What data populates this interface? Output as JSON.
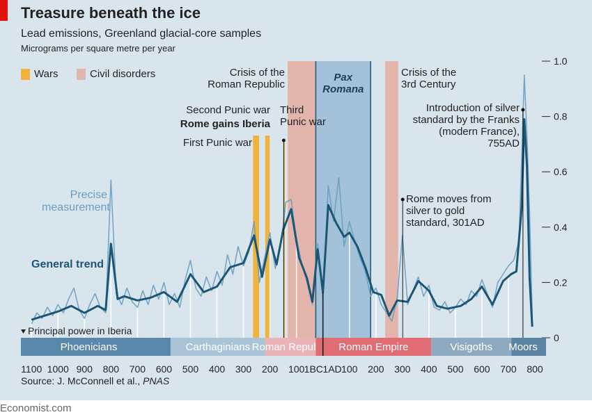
{
  "chart_data": {
    "type": "line",
    "title": "Treasure beneath the ice",
    "subtitle": "Lead emissions, Greenland glacial-core samples",
    "y_label": "Micrograms per square metre per year",
    "source": "Source: J. McConnell et al.,",
    "source_journal": "PNAS",
    "footer": "Economist.com",
    "xlim": [
      -1140,
      800
    ],
    "xticks": [
      {
        "value": -1100,
        "label": "1100"
      },
      {
        "value": -1000,
        "label": "1000"
      },
      {
        "value": -900,
        "label": "900"
      },
      {
        "value": -800,
        "label": "800"
      },
      {
        "value": -700,
        "label": "700"
      },
      {
        "value": -600,
        "label": "600"
      },
      {
        "value": -500,
        "label": "500"
      },
      {
        "value": -400,
        "label": "400"
      },
      {
        "value": -300,
        "label": "300"
      },
      {
        "value": -200,
        "label": "200"
      },
      {
        "value": -100,
        "label": "100"
      },
      {
        "value": -1,
        "label": "1BC"
      },
      {
        "value": 1,
        "label": "1AD"
      },
      100,
      200,
      300,
      400,
      500,
      600,
      700,
      800
    ],
    "ylim": [
      0,
      1
    ],
    "yticks": [
      0,
      0.2,
      0.4,
      0.6,
      0.8,
      {
        "value": 1,
        "label": "1.0"
      }
    ],
    "legend": [
      {
        "name": "Wars",
        "color": "#f0b43c"
      },
      {
        "name": "Civil disorders",
        "color": "#e3b4ab"
      }
    ],
    "wars": [
      [
        -264,
        -241
      ],
      [
        -218,
        -201
      ],
      [
        -149,
        -146
      ]
    ],
    "civil_disorders": [
      [
        -133,
        -27
      ],
      [
        235,
        284
      ]
    ],
    "pax_romana": {
      "label": "Pax\nRomana",
      "start": -27,
      "end": 180,
      "color": "#a3c2da"
    },
    "series": [
      {
        "name": "Precise measurement",
        "color": "#6c9dc0",
        "x": [
          -1100,
          -1080,
          -1060,
          -1040,
          -1020,
          -1000,
          -980,
          -960,
          -940,
          -920,
          -900,
          -880,
          -860,
          -840,
          -820,
          -800,
          -780,
          -760,
          -740,
          -720,
          -700,
          -680,
          -660,
          -640,
          -620,
          -600,
          -580,
          -560,
          -540,
          -520,
          -500,
          -480,
          -460,
          -440,
          -420,
          -400,
          -380,
          -360,
          -340,
          -320,
          -300,
          -280,
          -260,
          -240,
          -220,
          -200,
          -180,
          -160,
          -140,
          -120,
          -100,
          -80,
          -60,
          -40,
          -20,
          0,
          20,
          40,
          60,
          80,
          100,
          120,
          140,
          160,
          180,
          200,
          220,
          240,
          260,
          280,
          300,
          320,
          340,
          360,
          380,
          400,
          420,
          440,
          460,
          480,
          500,
          520,
          540,
          560,
          580,
          600,
          620,
          640,
          660,
          680,
          700,
          720,
          740,
          760,
          770,
          780,
          790
        ],
        "values": [
          0.05,
          0.09,
          0.07,
          0.11,
          0.08,
          0.12,
          0.09,
          0.14,
          0.18,
          0.1,
          0.07,
          0.12,
          0.16,
          0.11,
          0.09,
          0.57,
          0.16,
          0.12,
          0.18,
          0.13,
          0.11,
          0.17,
          0.12,
          0.19,
          0.14,
          0.2,
          0.12,
          0.16,
          0.11,
          0.21,
          0.28,
          0.18,
          0.15,
          0.22,
          0.17,
          0.24,
          0.19,
          0.3,
          0.23,
          0.33,
          0.26,
          0.31,
          0.42,
          0.2,
          0.29,
          0.38,
          0.25,
          0.33,
          0.49,
          0.5,
          0.36,
          0.27,
          0.2,
          0.12,
          0.34,
          0.14,
          0.55,
          0.42,
          0.58,
          0.33,
          0.42,
          0.35,
          0.29,
          0.24,
          0.15,
          0.18,
          0.12,
          0.09,
          0.06,
          0.14,
          0.37,
          0.12,
          0.17,
          0.22,
          0.15,
          0.19,
          0.11,
          0.1,
          0.13,
          0.09,
          0.11,
          0.14,
          0.12,
          0.17,
          0.15,
          0.21,
          0.16,
          0.11,
          0.2,
          0.23,
          0.26,
          0.28,
          0.35,
          0.95,
          0.73,
          0.45,
          0.08
        ]
      },
      {
        "name": "General trend",
        "color": "#1b5674",
        "x": [
          -1100,
          -1050,
          -1000,
          -950,
          -900,
          -850,
          -820,
          -800,
          -775,
          -750,
          -700,
          -650,
          -600,
          -550,
          -500,
          -450,
          -400,
          -350,
          -300,
          -260,
          -230,
          -200,
          -175,
          -150,
          -120,
          -90,
          -60,
          -40,
          -20,
          0,
          20,
          50,
          80,
          100,
          130,
          160,
          190,
          220,
          250,
          280,
          320,
          360,
          400,
          430,
          470,
          520,
          560,
          600,
          640,
          680,
          710,
          730,
          750,
          760,
          770,
          780,
          790
        ],
        "values": [
          0.065,
          0.08,
          0.095,
          0.115,
          0.09,
          0.115,
          0.1,
          0.34,
          0.14,
          0.15,
          0.135,
          0.145,
          0.165,
          0.13,
          0.23,
          0.165,
          0.185,
          0.255,
          0.27,
          0.37,
          0.22,
          0.355,
          0.265,
          0.39,
          0.465,
          0.29,
          0.215,
          0.13,
          0.32,
          0.165,
          0.48,
          0.415,
          0.365,
          0.38,
          0.33,
          0.255,
          0.165,
          0.155,
          0.08,
          0.135,
          0.13,
          0.205,
          0.17,
          0.115,
          0.105,
          0.115,
          0.14,
          0.185,
          0.12,
          0.205,
          0.23,
          0.24,
          0.47,
          0.79,
          0.62,
          0.215,
          0.04
        ]
      }
    ],
    "annotations": [
      {
        "text": "Crisis of the\nRoman Republic"
      },
      {
        "text": "Crisis of the\n3rd Century"
      },
      {
        "text": "Second Punic war"
      },
      {
        "text": "Rome gains Iberia"
      },
      {
        "text": "First Punic war"
      },
      {
        "text": "Third\nPunic war",
        "x": -148
      },
      {
        "text": "Introduction of silver\nstandard by the Franks\n(modern France),\n755AD",
        "x": 755
      },
      {
        "text": "Rome moves from\nsilver to gold\nstandard, 301AD",
        "x": 301
      }
    ],
    "iberia_label": "Principal power in Iberia",
    "iberia_powers": [
      {
        "name": "Phoenicians",
        "start": -1140,
        "end": -575,
        "color": "#5a88aa"
      },
      {
        "name": "Carthaginians",
        "start": -575,
        "end": -218,
        "color": "#a8c4d6"
      },
      {
        "name": "Roman Republic",
        "start": -218,
        "end": -27,
        "color": "#eab3b5"
      },
      {
        "name": "Roman Empire",
        "start": -27,
        "end": 409,
        "color": "#e06c74"
      },
      {
        "name": "Visigoths",
        "start": 409,
        "end": 711,
        "color": "#8eaac0"
      },
      {
        "name": "Moors",
        "start": 711,
        "end": 800,
        "color": "#5b84a4"
      }
    ]
  }
}
